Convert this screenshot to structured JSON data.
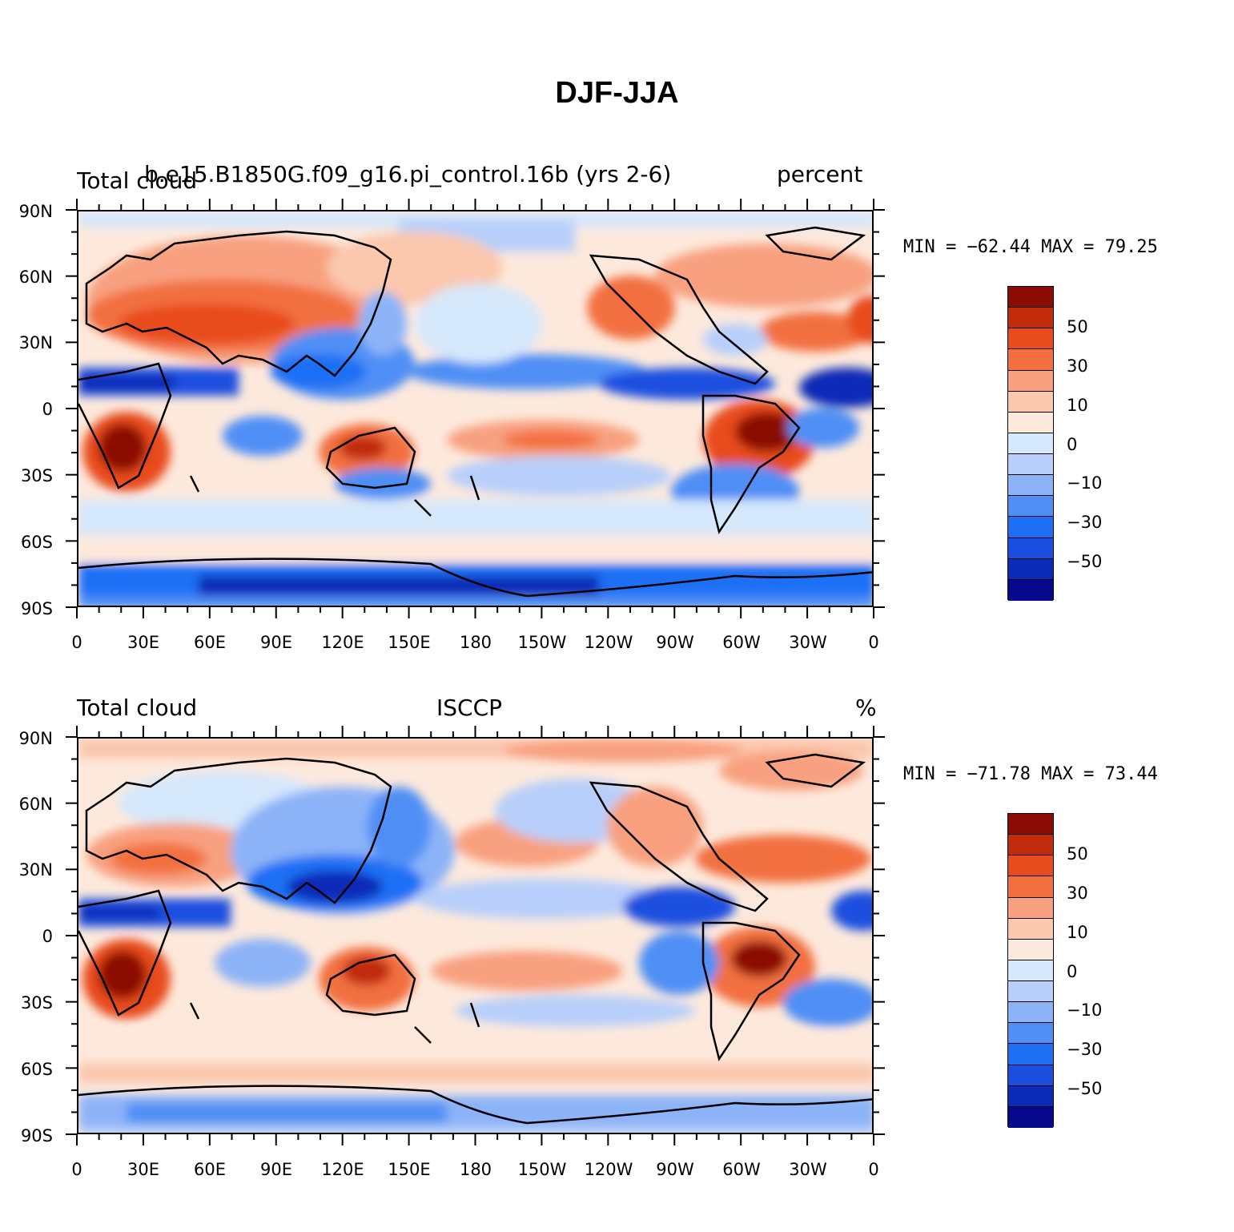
{
  "title": "DJF-JJA",
  "colors": [
    "#08088c",
    "#0c2bb8",
    "#1a4fe0",
    "#1f6ff5",
    "#4f8ff5",
    "#8cb3f7",
    "#b7cffa",
    "#d6e8fb",
    "#fde9dc",
    "#fbc7ad",
    "#f8a07f",
    "#f27040",
    "#e84b1d",
    "#c02b0c",
    "#8b0c04"
  ],
  "colorbar_labels": [
    "50",
    "30",
    "10",
    "0",
    "−10",
    "−30",
    "−50"
  ],
  "lat_labels": [
    "90N",
    "60N",
    "30N",
    "0",
    "30S",
    "60S",
    "90S"
  ],
  "lon_labels": [
    "0",
    "30E",
    "60E",
    "90E",
    "120E",
    "150E",
    "180",
    "150W",
    "120W",
    "90W",
    "60W",
    "30W",
    "0"
  ],
  "panels": [
    {
      "left_label": "Total cloud",
      "center_label": "b.e15.B1850G.f09_g16.pi_control.16b (yrs 2-6)",
      "right_label": "percent",
      "min_label": "MIN = −62.44",
      "max_label": "MAX =  79.25"
    },
    {
      "left_label": "Total cloud",
      "center_label": "ISCCP",
      "right_label": "%",
      "min_label": "MIN = −71.78",
      "max_label": "MAX =  73.44"
    }
  ]
}
